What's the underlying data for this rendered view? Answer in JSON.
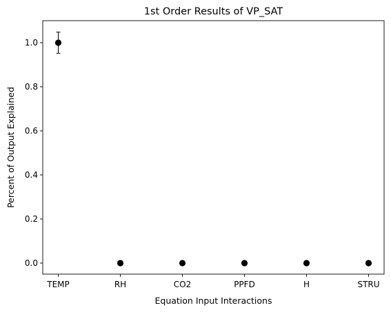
{
  "chart_data": {
    "type": "scatter",
    "title": "1st Order Results of VP_SAT",
    "xlabel": "Equation Input Interactions",
    "ylabel": "Percent of Output Explained",
    "categories": [
      "TEMP",
      "RH",
      "CO2",
      "PPFD",
      "H",
      "STRU"
    ],
    "values": [
      1.0,
      0.0,
      0.0,
      0.0,
      0.0,
      0.0
    ],
    "error": [
      0.048,
      0.0,
      0.0,
      0.0,
      0.0,
      0.0
    ],
    "ylim": [
      -0.05,
      1.1
    ],
    "yticks": [
      0.0,
      0.2,
      0.4,
      0.6,
      0.8,
      1.0
    ],
    "ytick_labels": [
      "0.0",
      "0.2",
      "0.4",
      "0.6",
      "0.8",
      "1.0"
    ],
    "grid": false,
    "legend": null,
    "marker_color": "#000000"
  }
}
